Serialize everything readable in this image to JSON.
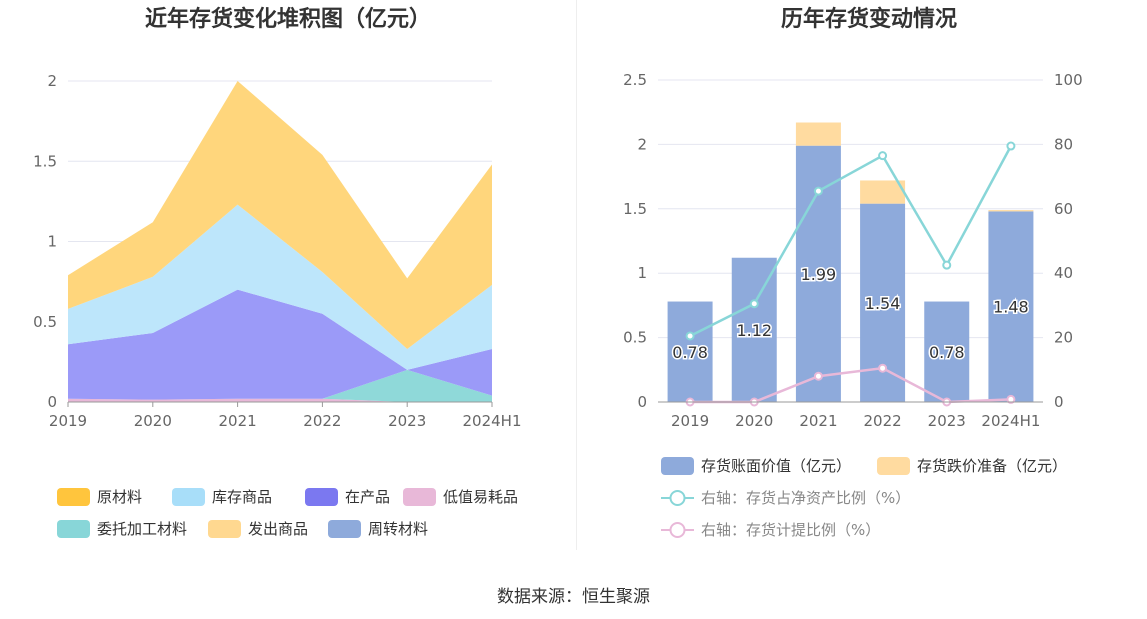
{
  "source_note": "数据来源：恒生聚源",
  "chart_data": [
    {
      "type": "area",
      "stacked": true,
      "title": "近年存货变化堆积图（亿元）",
      "categories": [
        "2019",
        "2020",
        "2021",
        "2022",
        "2023",
        "2024H1"
      ],
      "ylim": [
        0,
        2
      ],
      "yticks": [
        "0",
        "0.5",
        "1",
        "1.5",
        "2"
      ],
      "grid": true,
      "legend_position": "bottom",
      "series": [
        {
          "name": "低值易耗品",
          "color": "#e8b8d8",
          "values": [
            0.02,
            0.015,
            0.02,
            0.02,
            0.0,
            0.0
          ]
        },
        {
          "name": "委托加工材料",
          "color": "#8fd9d9",
          "values": [
            0.0,
            0.0,
            0.0,
            0.0,
            0.2,
            0.04
          ]
        },
        {
          "name": "在产品",
          "color": "#9b9af8",
          "values": [
            0.34,
            0.415,
            0.68,
            0.53,
            0.0,
            0.29
          ]
        },
        {
          "name": "库存商品",
          "color": "#bde6fb",
          "values": [
            0.22,
            0.35,
            0.53,
            0.26,
            0.13,
            0.4
          ]
        },
        {
          "name": "原材料",
          "color": "#ffd67c",
          "values": [
            0.21,
            0.34,
            0.77,
            0.73,
            0.44,
            0.75
          ]
        },
        {
          "name": "发出商品",
          "color": "#ffd890",
          "values": [
            0,
            0,
            0,
            0,
            0,
            0
          ]
        },
        {
          "name": "周转材料",
          "color": "#8eaadb",
          "values": [
            0,
            0,
            0,
            0,
            0,
            0
          ]
        }
      ],
      "legend": [
        {
          "name": "原材料",
          "color": "#ffc53d"
        },
        {
          "name": "库存商品",
          "color": "#a8def9"
        },
        {
          "name": "在产品",
          "color": "#7b78f0"
        },
        {
          "name": "低值易耗品",
          "color": "#e8b8d8"
        },
        {
          "name": "委托加工材料",
          "color": "#88d6d8"
        },
        {
          "name": "发出商品",
          "color": "#ffd890"
        },
        {
          "name": "周转材料",
          "color": "#8eaadb"
        }
      ]
    },
    {
      "type": "bar",
      "stacked": true,
      "title": "历年存货变动情况",
      "categories": [
        "2019",
        "2020",
        "2021",
        "2022",
        "2023",
        "2024H1"
      ],
      "ylim": [
        0,
        2.5
      ],
      "yticks": [
        "0",
        "0.5",
        "1",
        "1.5",
        "2",
        "2.5"
      ],
      "y2lim": [
        0,
        100
      ],
      "y2ticks": [
        "0",
        "20",
        "40",
        "60",
        "80",
        "100"
      ],
      "grid": true,
      "legend_position": "bottom",
      "series": [
        {
          "name": "存货账面价值（亿元）",
          "axis": "left",
          "kind": "bar",
          "color": "#8eaadb",
          "values": [
            0.78,
            1.12,
            1.99,
            1.54,
            0.78,
            1.48
          ],
          "labels": [
            "0.78",
            "1.12",
            "1.99",
            "1.54",
            "0.78",
            "1.48"
          ]
        },
        {
          "name": "存货跌价准备（亿元）",
          "axis": "left",
          "kind": "bar",
          "color": "#ffdba0",
          "values": [
            0.0,
            0.0,
            0.18,
            0.18,
            0.0,
            0.01
          ]
        },
        {
          "name": "右轴：存货占净资产比例（%）",
          "axis": "right",
          "kind": "line",
          "color": "#88d6d8",
          "values": [
            20.5,
            30.5,
            65.5,
            76.5,
            42.5,
            79.5
          ]
        },
        {
          "name": "右轴：存货计提比例（%）",
          "axis": "right",
          "kind": "line",
          "color": "#e8b8d8",
          "values": [
            0.0,
            0.0,
            8.0,
            10.5,
            0.0,
            0.8
          ]
        }
      ]
    }
  ]
}
